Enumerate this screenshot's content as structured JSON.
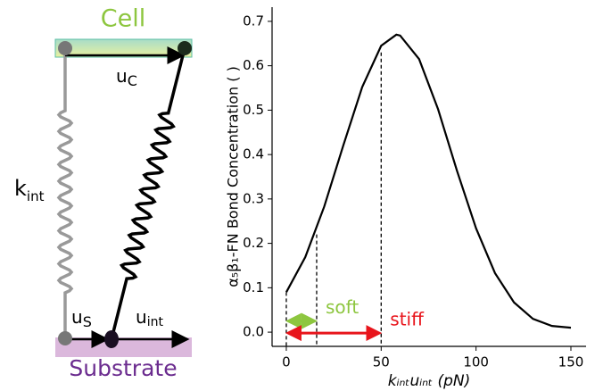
{
  "diagram": {
    "cell": "Cell",
    "substrate": "Substrate",
    "k": "k",
    "k_sub": "int",
    "uc": "u",
    "uc_sub": "C",
    "us": "u",
    "us_sub": "S",
    "uint": "u",
    "uint_sub": "int"
  },
  "chart_data": {
    "type": "line",
    "ylabel": "α₅β₁-FN Bond Concentration ( )",
    "xlabel": "kᵢₙₜuᵢₙₜ (pN)",
    "x": [
      0,
      10,
      20,
      30,
      40,
      50,
      58,
      60,
      70,
      80,
      90,
      100,
      110,
      120,
      130,
      140,
      150
    ],
    "series": [
      {
        "color": "#000000",
        "values": [
          0.09,
          0.169,
          0.283,
          0.42,
          0.552,
          0.645,
          0.67,
          0.668,
          0.615,
          0.502,
          0.363,
          0.234,
          0.133,
          0.067,
          0.03,
          0.014,
          0.01
        ]
      }
    ],
    "xlim": [
      -7.5,
      158
    ],
    "ylim": [
      -0.032,
      0.732
    ],
    "xticks": [
      0,
      50,
      100,
      150
    ],
    "yticks": [
      {
        "value": 0,
        "label": "0.0"
      },
      0.1,
      0.2,
      0.3,
      0.4,
      0.5,
      0.6,
      0.7
    ],
    "dashed_lines": [
      {
        "x": 0,
        "y": 0.09
      },
      {
        "x": 16,
        "y": 0.22
      },
      {
        "x": 50,
        "y": 0.63
      }
    ],
    "ranges": [
      {
        "label": "soft",
        "from": 0,
        "to": 16,
        "y": 0.025,
        "color": "#8dc63f"
      },
      {
        "label": "stiff",
        "from": 0,
        "to": 50,
        "y": -0.002,
        "color": "#e8141b"
      }
    ]
  }
}
